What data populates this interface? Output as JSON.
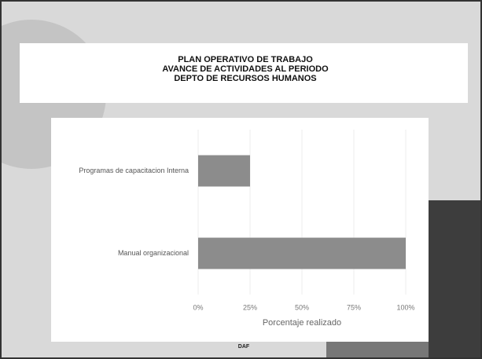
{
  "chart_data": {
    "type": "bar",
    "orientation": "horizontal",
    "title": [
      "PLAN OPERATIVO DE TRABAJO",
      "AVANCE DE ACTIVIDADES AL PERIODO",
      "DEPTO DE RECURSOS HUMANOS"
    ],
    "categories": [
      "Programas de capacitacion Interna",
      "Manual organizacional"
    ],
    "values": [
      25,
      100
    ],
    "color": "#8c8c8c",
    "xlim": [
      0,
      100
    ],
    "xticks": [
      {
        "value": 0,
        "label": "0%"
      },
      {
        "value": 25,
        "label": "25%"
      },
      {
        "value": 50,
        "label": "50%"
      },
      {
        "value": 75,
        "label": "75%"
      },
      {
        "value": 100,
        "label": "100%"
      }
    ],
    "xlabel": "Porcentaje realizado",
    "grid": true,
    "footer": "DAF"
  }
}
